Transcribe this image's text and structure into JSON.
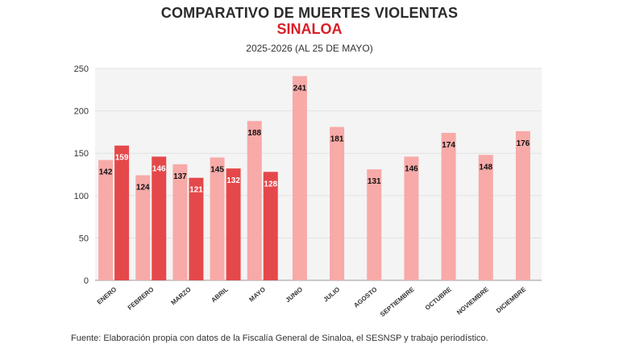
{
  "header": {
    "title": "COMPARATIVO DE MUERTES VIOLENTAS",
    "region": "SINALOA",
    "period": "2025-2026 (AL 25 DE MAYO)"
  },
  "footer": {
    "source": "Fuente: Elaboración propia con datos de la Fiscalía General de Sinaloa, el SESNSP y trabajo periodístico."
  },
  "colors": {
    "accent_red": "#d91f26",
    "series_2025": "#f7aaa8",
    "series_2026": "#e5484a",
    "plot_background": "#f4f4f4"
  },
  "chart_data": {
    "type": "bar",
    "categories": [
      "ENERO",
      "FEBRERO",
      "MARZO",
      "ABRIL",
      "MAYO",
      "JUNIO",
      "JULIO",
      "AGOSTO",
      "SEPTIEMBRE",
      "OCTUBRE",
      "NOVIEMBRE",
      "DICIEMBRE"
    ],
    "series": [
      {
        "values": [
          142,
          124,
          137,
          145,
          188,
          241,
          181,
          131,
          146,
          174,
          148,
          176
        ]
      },
      {
        "values": [
          159,
          146,
          121,
          132,
          128,
          null,
          null,
          null,
          null,
          null,
          null,
          null
        ]
      }
    ],
    "y_ticks": [
      0,
      50,
      100,
      150,
      200,
      250
    ],
    "ylim": [
      0,
      250
    ],
    "grid": true,
    "legend": "none"
  }
}
